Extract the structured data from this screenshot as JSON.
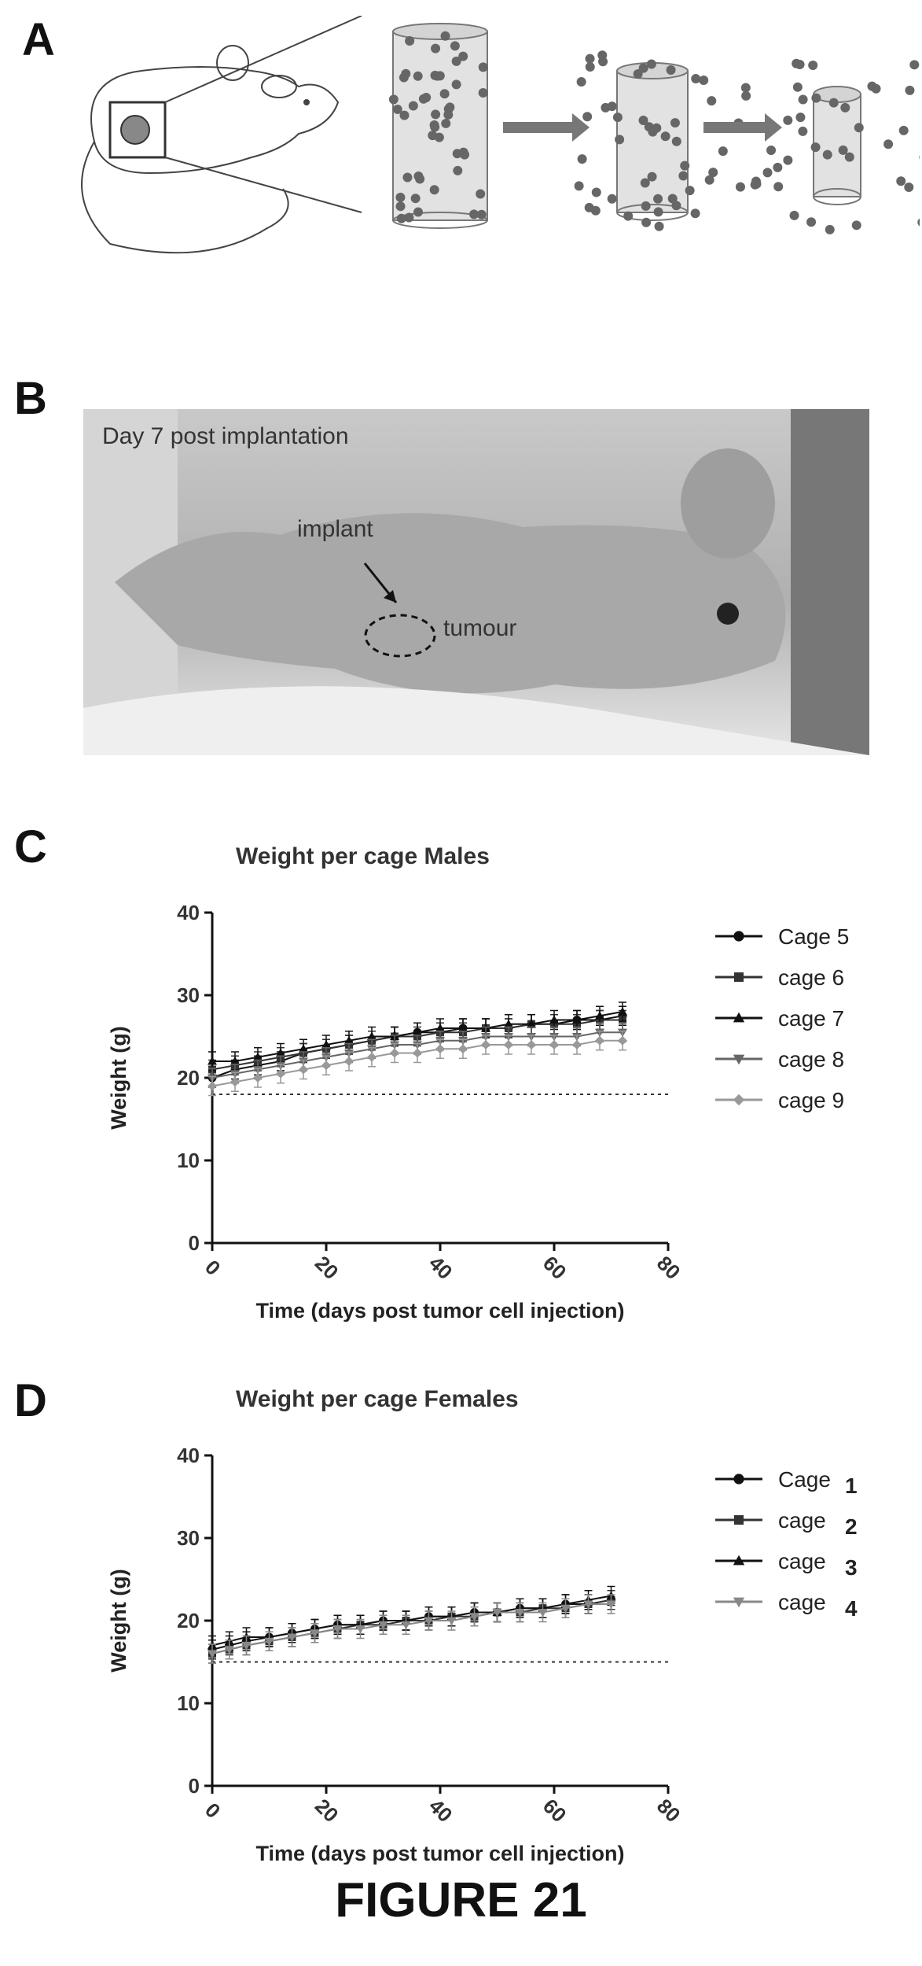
{
  "panels": {
    "a": {
      "letter": "A"
    },
    "b": {
      "letter": "B",
      "caption": "Day 7 post implantation",
      "label_implant": "implant",
      "label_tumour": "tumour"
    },
    "c": {
      "letter": "C"
    },
    "d": {
      "letter": "D"
    }
  },
  "figure_label": "FIGURE 21",
  "colors": {
    "ink": "#111111",
    "gray": "#555555",
    "light_gray": "#9a9a9a",
    "photo_bg": "#b8b8b8"
  },
  "chart_data": [
    {
      "type": "line",
      "title": "Weight per cage Males",
      "xlabel": "Time (days post tumor cell injection)",
      "ylabel": "Weight (g)",
      "xlim": [
        0,
        80
      ],
      "ylim": [
        0,
        40
      ],
      "x_ticks": [
        "0",
        "20",
        "40",
        "60",
        "80"
      ],
      "y_ticks": [
        "0",
        "10",
        "20",
        "30",
        "40"
      ],
      "reference_line_y": 18,
      "legend_position": "right",
      "series": [
        {
          "name": "Cage 5",
          "marker": "circle",
          "color": "#111111",
          "x": [
            0,
            4,
            8,
            12,
            16,
            20,
            24,
            28,
            32,
            36,
            40,
            44,
            48,
            52,
            56,
            60,
            64,
            68,
            72
          ],
          "y": [
            20,
            21,
            21.5,
            22,
            23,
            23.5,
            24,
            24.5,
            25,
            25.5,
            25.5,
            26,
            26,
            26,
            26.5,
            26.5,
            27,
            27,
            27.5
          ]
        },
        {
          "name": "cage 6",
          "marker": "square",
          "color": "#333333",
          "x": [
            0,
            4,
            8,
            12,
            16,
            20,
            24,
            28,
            32,
            36,
            40,
            44,
            48,
            52,
            56,
            60,
            64,
            68,
            72
          ],
          "y": [
            21,
            21.5,
            22,
            22.5,
            23,
            23.5,
            24,
            24.5,
            25,
            25,
            25.5,
            25.5,
            26,
            26,
            26.5,
            26.5,
            26.5,
            27,
            27
          ]
        },
        {
          "name": "cage 7",
          "marker": "triangle",
          "color": "#111111",
          "x": [
            0,
            4,
            8,
            12,
            16,
            20,
            24,
            28,
            32,
            36,
            40,
            44,
            48,
            52,
            56,
            60,
            64,
            68,
            72
          ],
          "y": [
            22,
            22,
            22.5,
            23,
            23.5,
            24,
            24.5,
            25,
            25,
            25.5,
            26,
            26,
            26,
            26.5,
            26.5,
            27,
            27,
            27.5,
            28
          ]
        },
        {
          "name": "cage 8",
          "marker": "triangle-down",
          "color": "#666666",
          "x": [
            0,
            4,
            8,
            12,
            16,
            20,
            24,
            28,
            32,
            36,
            40,
            44,
            48,
            52,
            56,
            60,
            64,
            68,
            72
          ],
          "y": [
            20,
            20.5,
            21,
            21.5,
            22,
            22.5,
            23,
            23.5,
            24,
            24,
            24.5,
            24.5,
            25,
            25,
            25,
            25,
            25,
            25.5,
            25.5
          ]
        },
        {
          "name": "cage 9",
          "marker": "diamond",
          "color": "#999999",
          "x": [
            0,
            4,
            8,
            12,
            16,
            20,
            24,
            28,
            32,
            36,
            40,
            44,
            48,
            52,
            56,
            60,
            64,
            68,
            72
          ],
          "y": [
            19,
            19.5,
            20,
            20.5,
            21,
            21.5,
            22,
            22.5,
            23,
            23,
            23.5,
            23.5,
            24,
            24,
            24,
            24,
            24,
            24.5,
            24.5
          ]
        }
      ]
    },
    {
      "type": "line",
      "title": "Weight per cage Females",
      "xlabel": "Time (days post tumor cell injection)",
      "ylabel": "Weight (g)",
      "xlim": [
        0,
        80
      ],
      "ylim": [
        0,
        40
      ],
      "x_ticks": [
        "0",
        "20",
        "40",
        "60",
        "80"
      ],
      "y_ticks": [
        "0",
        "10",
        "20",
        "30",
        "40"
      ],
      "reference_line_y": 15,
      "legend_position": "right",
      "series": [
        {
          "name_word": "Cage",
          "name_num": "1",
          "marker": "circle",
          "color": "#111111",
          "x": [
            0,
            3,
            6,
            10,
            14,
            18,
            22,
            26,
            30,
            34,
            38,
            42,
            46,
            50,
            54,
            58,
            62,
            66,
            70
          ],
          "y": [
            16.5,
            17,
            17.5,
            18,
            18.5,
            19,
            19.5,
            19.5,
            20,
            20,
            20.5,
            20.5,
            21,
            21,
            21.5,
            21.5,
            22,
            22,
            22.5
          ]
        },
        {
          "name_word": "cage",
          "name_num": "2",
          "marker": "square",
          "color": "#333333",
          "x": [
            0,
            3,
            6,
            10,
            14,
            18,
            22,
            26,
            30,
            34,
            38,
            42,
            46,
            50,
            54,
            58,
            62,
            66,
            70
          ],
          "y": [
            16,
            16.5,
            17,
            17.5,
            18,
            18.5,
            19,
            19.5,
            19.5,
            20,
            20,
            20.5,
            20.5,
            21,
            21,
            21.5,
            21.5,
            22,
            22.5
          ]
        },
        {
          "name_word": "cage",
          "name_num": "3",
          "marker": "triangle",
          "color": "#111111",
          "x": [
            0,
            3,
            6,
            10,
            14,
            18,
            22,
            26,
            30,
            34,
            38,
            42,
            46,
            50,
            54,
            58,
            62,
            66,
            70
          ],
          "y": [
            17,
            17.5,
            18,
            18,
            18.5,
            19,
            19.5,
            19.5,
            20,
            20,
            20.5,
            20.5,
            21,
            21,
            21.5,
            21.5,
            22,
            22.5,
            23
          ]
        },
        {
          "name_word": "cage",
          "name_num": "4",
          "marker": "triangle-down",
          "color": "#888888",
          "x": [
            0,
            3,
            6,
            10,
            14,
            18,
            22,
            26,
            30,
            34,
            38,
            42,
            46,
            50,
            54,
            58,
            62,
            66,
            70
          ],
          "y": [
            16,
            16.5,
            17,
            17.5,
            18,
            18.5,
            19,
            19,
            19.5,
            19.5,
            20,
            20,
            20.5,
            21,
            21,
            21,
            21.5,
            22,
            22
          ]
        }
      ]
    }
  ]
}
